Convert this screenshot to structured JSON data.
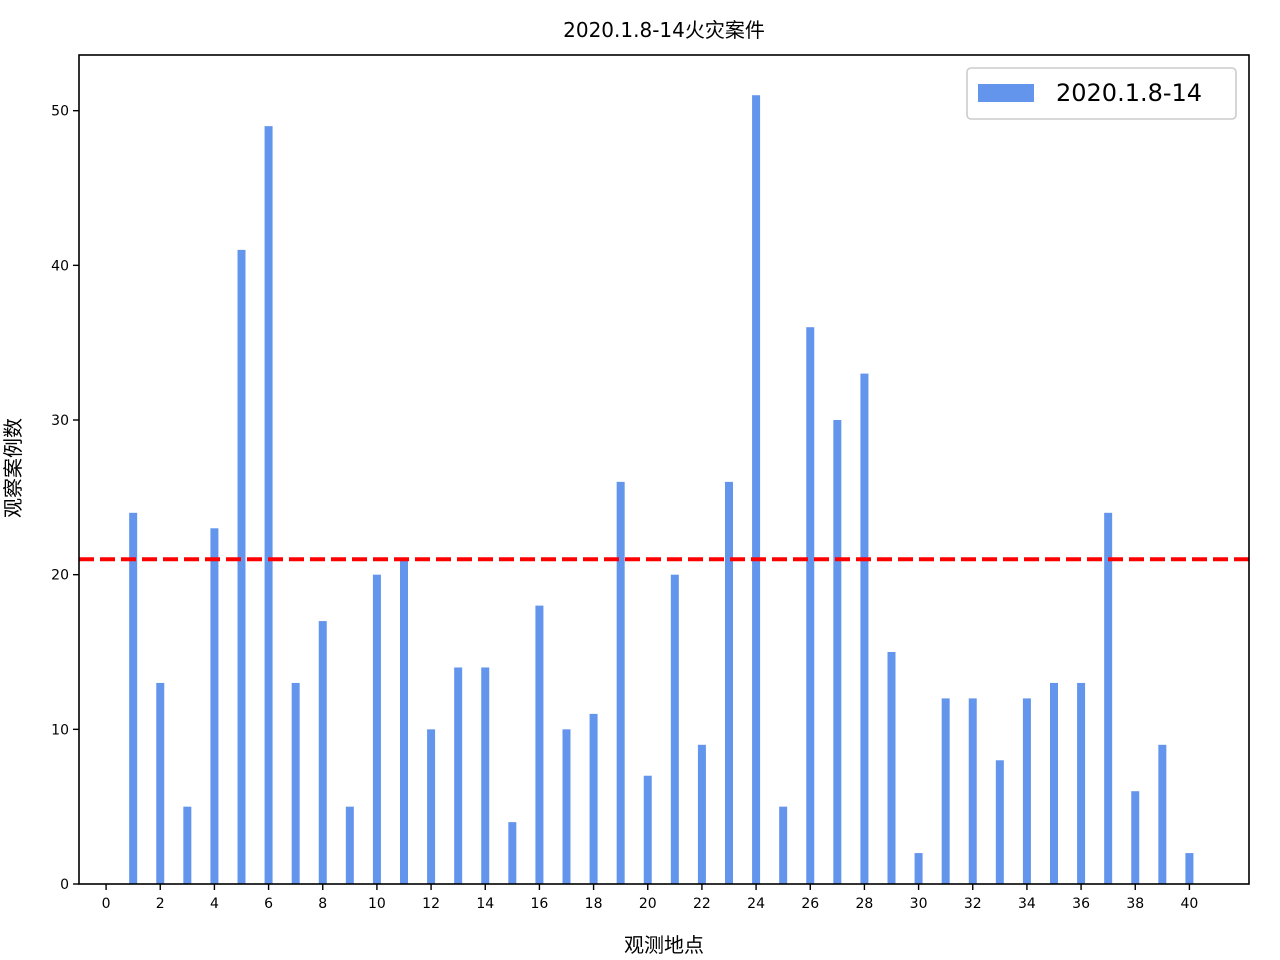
{
  "chart_data": {
    "type": "bar",
    "title": "2020.1.8-14火灾案件",
    "xlabel": "观测地点",
    "ylabel": "观察案例数",
    "x": [
      0,
      1,
      2,
      3,
      4,
      5,
      6,
      7,
      8,
      9,
      10,
      11,
      12,
      13,
      14,
      15,
      16,
      17,
      18,
      19,
      20,
      21,
      22,
      23,
      24,
      25,
      26,
      27,
      28,
      29,
      30,
      31,
      32,
      33,
      34,
      35,
      36,
      37,
      38,
      39,
      40
    ],
    "series": [
      {
        "name": "2020.1.8-14",
        "color": "#6495ED",
        "values": [
          0,
          24,
          13,
          5,
          23,
          41,
          49,
          13,
          17,
          5,
          20,
          21,
          10,
          14,
          14,
          4,
          18,
          10,
          11,
          26,
          7,
          20,
          9,
          26,
          51,
          5,
          36,
          30,
          33,
          15,
          2,
          12,
          12,
          8,
          12,
          13,
          13,
          24,
          6,
          9,
          2
        ]
      }
    ],
    "reference_line": {
      "value": 21,
      "color": "#FF0000",
      "style": "dashed"
    },
    "xlim": [
      -1,
      42.2
    ],
    "ylim": [
      0,
      53.6
    ],
    "xticks": [
      0,
      2,
      4,
      6,
      8,
      10,
      12,
      14,
      16,
      18,
      20,
      22,
      24,
      26,
      28,
      30,
      32,
      34,
      36,
      38,
      40
    ],
    "yticks": [
      0,
      10,
      20,
      30,
      40,
      50
    ],
    "grid": false,
    "legend_position": "top-right"
  }
}
